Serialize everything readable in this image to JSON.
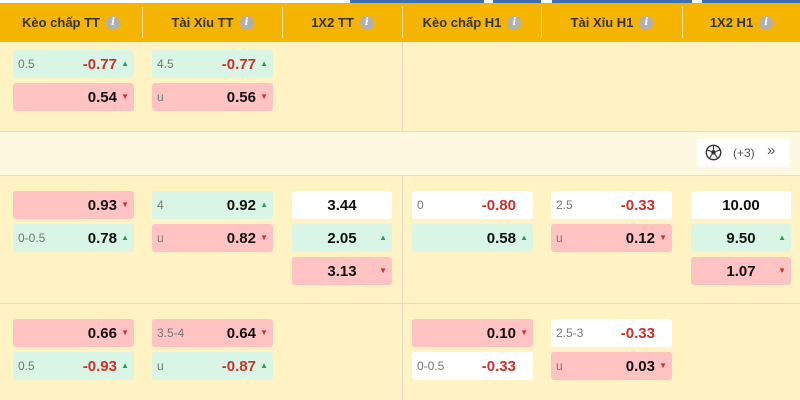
{
  "header": {
    "columns": [
      "Kèo chấp TT",
      "Tài Xỉu TT",
      "1X2 TT",
      "Kèo chấp H1",
      "Tài Xỉu H1",
      "1X2 H1"
    ],
    "info_icon": "i"
  },
  "more": {
    "count": "(+3)",
    "chevron": "»"
  },
  "rows": {
    "r1": {
      "hdp_ft": {
        "home": {
          "line": "0.5",
          "odds": "-0.77"
        },
        "away": {
          "line": "",
          "odds": "0.54"
        }
      },
      "ou_ft": {
        "over": {
          "line": "4.5",
          "odds": "-0.77"
        },
        "under": {
          "line": "u",
          "odds": "0.56"
        }
      }
    },
    "r2": {
      "hdp_ft": {
        "home": {
          "line": "",
          "odds": "0.93"
        },
        "away": {
          "line": "0-0.5",
          "odds": "0.78"
        }
      },
      "ou_ft": {
        "over": {
          "line": "4",
          "odds": "0.92"
        },
        "under": {
          "line": "u",
          "odds": "0.82"
        }
      },
      "x12_ft": {
        "home": "3.44",
        "away": "2.05",
        "draw": "3.13"
      },
      "hdp_h1": {
        "home": {
          "line": "0",
          "odds": "-0.80"
        },
        "away": {
          "line": "",
          "odds": "0.58"
        }
      },
      "ou_h1": {
        "over": {
          "line": "2.5",
          "odds": "-0.33"
        },
        "under": {
          "line": "u",
          "odds": "0.12"
        }
      },
      "x12_h1": {
        "home": "10.00",
        "away": "9.50",
        "draw": "1.07"
      }
    },
    "r3": {
      "hdp_ft": {
        "home": {
          "line": "",
          "odds": "0.66"
        },
        "away": {
          "line": "0.5",
          "odds": "-0.93"
        }
      },
      "ou_ft": {
        "over": {
          "line": "3.5-4",
          "odds": "0.64"
        },
        "under": {
          "line": "u",
          "odds": "-0.87"
        }
      },
      "hdp_h1": {
        "home": {
          "line": "",
          "odds": "0.10"
        },
        "away": {
          "line": "0-0.5",
          "odds": "-0.33"
        }
      },
      "ou_h1": {
        "over": {
          "line": "2.5-3",
          "odds": "-0.33"
        },
        "under": {
          "line": "u",
          "odds": "0.03"
        }
      }
    }
  },
  "colors": {
    "header": "#f5b400",
    "row_bg": "#fff3c4",
    "odds_up": "#d8f5e6",
    "odds_down": "#ffc3c3",
    "negative_text": "#d0302a"
  }
}
